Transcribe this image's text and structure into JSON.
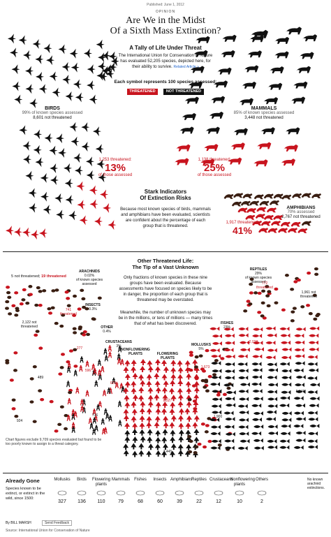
{
  "header": {
    "published": "Published: June 1, 2012",
    "opinion": "OPINION",
    "title_line1": "Are We in the Midst",
    "title_line2": "Of a Sixth Mass Extinction?"
  },
  "tally": {
    "heading": "A Tally of Life Under Threat",
    "intro": "The International Union for Conservation of Nature has evaluated 52,205 species, depicted here, for their ability to survive.",
    "related": "Related Article »",
    "symbol_note": "Each symbol represents 100 species assessed:",
    "threatened_label": "THREATENED",
    "not_threatened_label": "NOT THREATENED"
  },
  "birds": {
    "name": "BIRDS",
    "assessed": "99% of known species assessed",
    "not_threatened": "8,601 not threatened",
    "threatened": "1,253 threatened:",
    "pct": "13%",
    "of_assessed": "of those assessed"
  },
  "mammals": {
    "name": "MAMMALS",
    "assessed": "85% of known species assessed",
    "not_threatened": "3,448 not threatened",
    "threatened": "1,138 threatened:",
    "pct": "25%",
    "of_assessed": "of those assessed"
  },
  "amphibians": {
    "name": "AMPHIBIANS",
    "assessed": "70% assessed",
    "not_threatened": "2,767 not threatened",
    "threatened": "1,917 threatened:",
    "pct": "41%"
  },
  "stark": {
    "heading1": "Stark Indicators",
    "heading2": "Of Extinction Risks",
    "body": "Because most known species of birds, mammals and amphibians have been evaluated, scientists are confident about the percentage of each group that is threatened."
  },
  "other": {
    "heading1": "Other Threatened Life:",
    "heading2": "The Tip of a Vast Unknown",
    "p1": "Only fractions of known species in these nine groups have been evaluated. Because assessments have focused on species likely to be in danger, the proportion of each group that is threatened may be overstated.",
    "p2": "Meanwhile, the number of unknown species may be in the millions, or tens of millions — many times that of what has been discovered.",
    "legend_not": "5 not threatened;",
    "legend_thr": "19 threatened",
    "footnote": "Chart figures exclude 9,709 species evaluated but found to be too poorly known to assign to a threat category."
  },
  "groups": [
    {
      "name": "ARACHNIDS",
      "pct": "0.02%",
      "sub": "of known species assessed"
    },
    {
      "name": "INSECTS",
      "pct": "0.3%",
      "threatened": "741 threatened",
      "not": "2,122 not threatened"
    },
    {
      "name": "OTHER",
      "pct": "0.4%",
      "threatened": "277",
      "not": "489"
    },
    {
      "name": "CRUSTACEANS",
      "pct": "3%",
      "threatened": "596",
      "not": "924"
    },
    {
      "name": "NONFLOWERING PLANTS",
      "pct": "",
      "threatened": "629",
      "not": "716"
    },
    {
      "name": "FLOWERING PLANTS",
      "pct": "",
      "threatened": "8,527",
      "not": "3,445"
    },
    {
      "name": "MOLLUSKS",
      "pct": "5%",
      "threatened": "1,673",
      "not": "1,900"
    },
    {
      "name": "FISHES",
      "pct": "23%",
      "threatened": "2,028",
      "not": "5,346"
    },
    {
      "name": "REPTILES",
      "pct": "29%",
      "sub": "of known species assessed",
      "threatened": "772 threatened",
      "not": "1,961 not threatened"
    }
  ],
  "gone": {
    "heading": "Already Gone",
    "label": "Species known to be extinct, or extinct in the wild, since 1500:",
    "cols": [
      {
        "name": "Mollusks",
        "n": "327"
      },
      {
        "name": "Birds",
        "n": "136"
      },
      {
        "name": "Flowering plants",
        "n": "110"
      },
      {
        "name": "Mammals",
        "n": "79"
      },
      {
        "name": "Fishes",
        "n": "68"
      },
      {
        "name": "Insects",
        "n": "60"
      },
      {
        "name": "Amphibians",
        "n": "39"
      },
      {
        "name": "Reptiles",
        "n": "22"
      },
      {
        "name": "Crustaceans",
        "n": "12"
      },
      {
        "name": "Nonflowering plants",
        "n": "10"
      },
      {
        "name": "Others",
        "n": "2"
      }
    ],
    "no_known": "No known arachnid extinctions."
  },
  "footer": {
    "byline": "By BILL MARSH",
    "feedback": "Send Feedback",
    "source": "Source: International Union for Conservation of Nature"
  },
  "colors": {
    "red": "#c8141e",
    "black": "#111111",
    "dark": "#3a1e12"
  }
}
